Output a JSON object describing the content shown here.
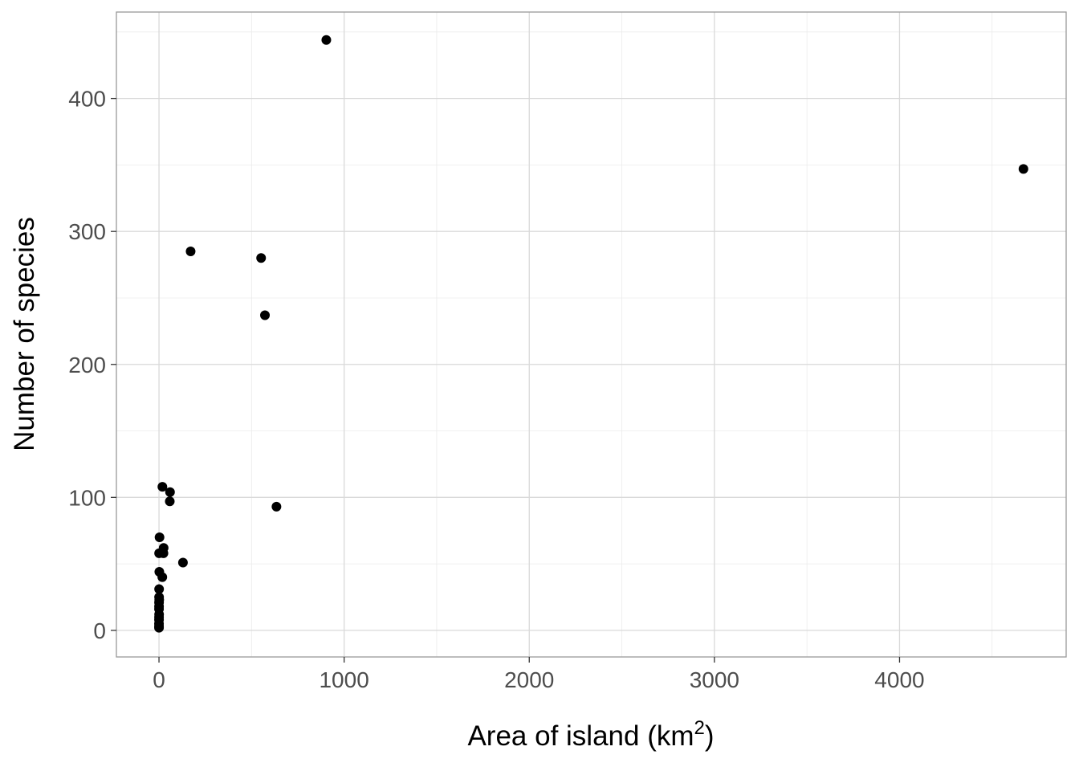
{
  "chart_data": {
    "type": "scatter",
    "title": "",
    "xlabel": "Area of island (km",
    "xlabel_superscript": "2",
    "xlabel_suffix": ")",
    "ylabel": "Number of species",
    "xlim": [
      -230,
      4900
    ],
    "ylim": [
      -20,
      465
    ],
    "x_ticks": [
      0,
      1000,
      2000,
      3000,
      4000
    ],
    "x_tick_labels": [
      "0",
      "1000",
      "2000",
      "3000",
      "4000"
    ],
    "y_ticks": [
      0,
      100,
      200,
      300,
      400
    ],
    "y_tick_labels": [
      "0",
      "100",
      "200",
      "300",
      "400"
    ],
    "x_minor_ticks": [
      500,
      1500,
      2500,
      3500,
      4500
    ],
    "y_minor_ticks": [
      50,
      150,
      250,
      350,
      450
    ],
    "grid": true,
    "point_color": "#000000",
    "points": [
      {
        "x": 903.8,
        "y": 444
      },
      {
        "x": 4669.3,
        "y": 347
      },
      {
        "x": 170.9,
        "y": 285
      },
      {
        "x": 551.6,
        "y": 280
      },
      {
        "x": 572.3,
        "y": 237
      },
      {
        "x": 634.5,
        "y": 93
      },
      {
        "x": 18.4,
        "y": 108
      },
      {
        "x": 59.6,
        "y": 104
      },
      {
        "x": 58.3,
        "y": 97
      },
      {
        "x": 2.9,
        "y": 70
      },
      {
        "x": 25.1,
        "y": 62
      },
      {
        "x": 0.6,
        "y": 58
      },
      {
        "x": 24.1,
        "y": 58
      },
      {
        "x": 129.5,
        "y": 51
      },
      {
        "x": 1.8,
        "y": 44
      },
      {
        "x": 17.9,
        "y": 40
      },
      {
        "x": 0.6,
        "y": 31
      },
      {
        "x": 0.5,
        "y": 25
      },
      {
        "x": 1.2,
        "y": 23
      },
      {
        "x": 0.3,
        "y": 21
      },
      {
        "x": 0.2,
        "y": 18
      },
      {
        "x": 0.1,
        "y": 16
      },
      {
        "x": 0.6,
        "y": 12
      },
      {
        "x": 0.2,
        "y": 10
      },
      {
        "x": 0.1,
        "y": 8
      },
      {
        "x": 0.0,
        "y": 5
      },
      {
        "x": 0.1,
        "y": 3
      },
      {
        "x": 0.1,
        "y": 2
      }
    ]
  }
}
